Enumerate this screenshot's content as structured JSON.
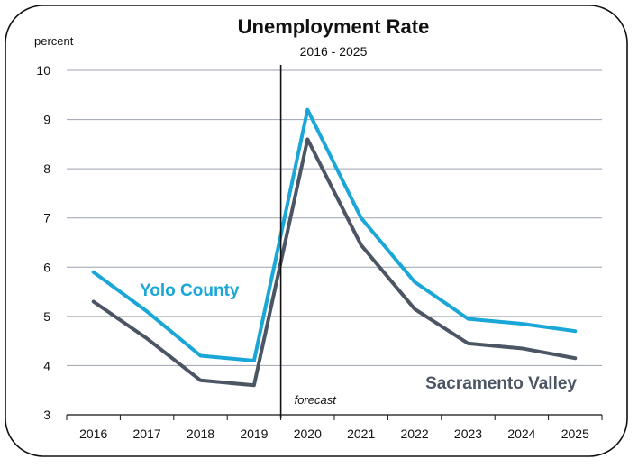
{
  "chart_data": {
    "type": "line",
    "title": "Unemployment Rate",
    "subtitle": "2016 - 2025",
    "ylabel": "percent",
    "xlabel": "",
    "categories": [
      "2016",
      "2017",
      "2018",
      "2019",
      "2020",
      "2021",
      "2022",
      "2023",
      "2024",
      "2025"
    ],
    "ylim": [
      3,
      10
    ],
    "yticks": [
      3,
      4,
      5,
      6,
      7,
      8,
      9,
      10
    ],
    "grid": "horizontal",
    "legend": "inline labels",
    "series": [
      {
        "name": "Yolo County",
        "color": "#1aa7d8",
        "values": [
          5.9,
          5.1,
          4.2,
          4.1,
          9.2,
          7.0,
          5.7,
          4.95,
          4.85,
          4.7
        ]
      },
      {
        "name": "Sacramento Valley",
        "color": "#4b5563",
        "values": [
          5.3,
          4.55,
          3.7,
          3.6,
          8.6,
          6.45,
          5.15,
          4.45,
          4.35,
          4.15
        ]
      }
    ],
    "annotations": [
      {
        "text": "forecast",
        "between": [
          "2019",
          "2020"
        ]
      }
    ]
  }
}
